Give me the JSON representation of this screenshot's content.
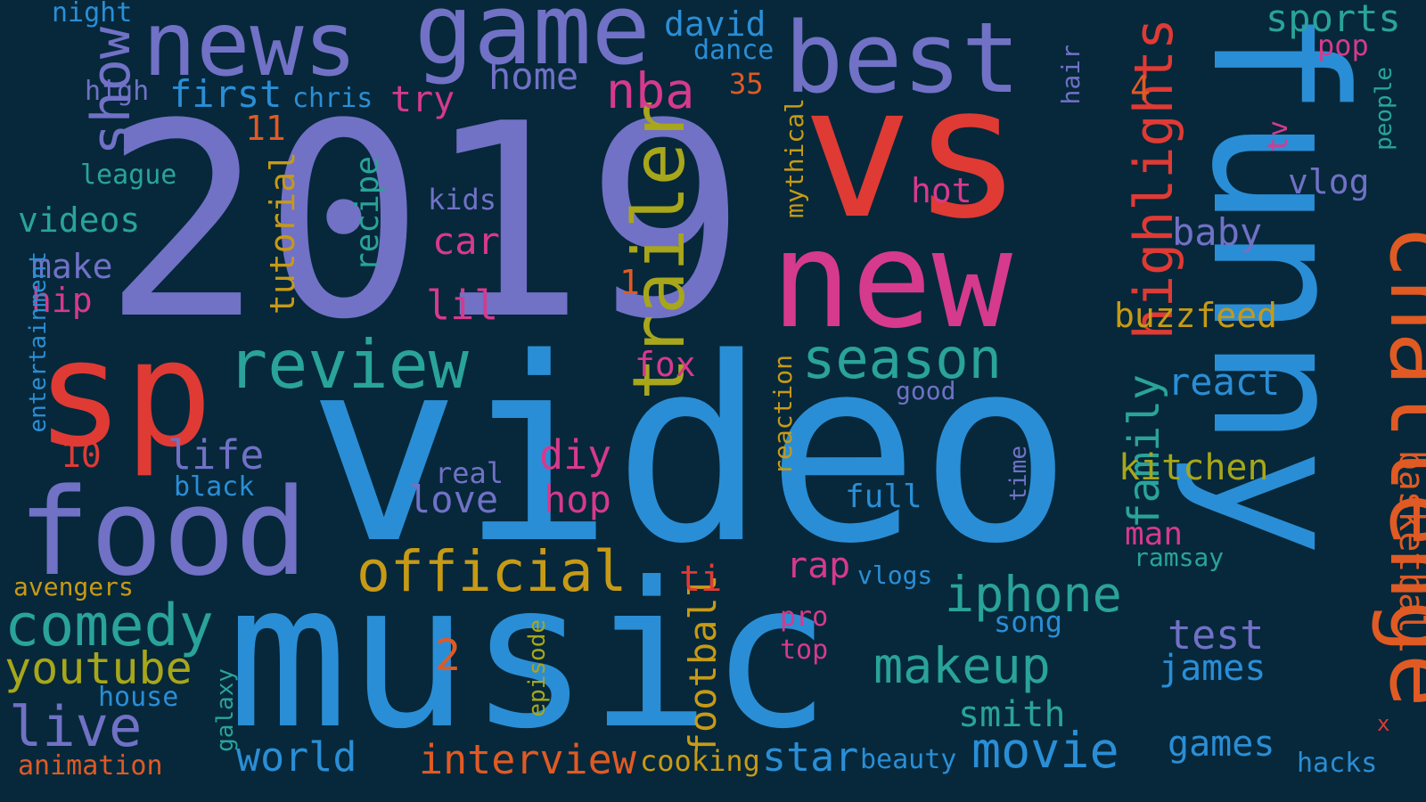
{
  "words": [
    {
      "text": "2019",
      "color": "#7171c6"
    },
    {
      "text": "video",
      "color": "#2a8ed6"
    },
    {
      "text": "vs",
      "color": "#e03a35"
    },
    {
      "text": "music",
      "color": "#2a8ed6"
    },
    {
      "text": "funny",
      "color": "#2a8ed6"
    },
    {
      "text": "new",
      "color": "#d63a8c"
    },
    {
      "text": "sp",
      "color": "#e03a35"
    },
    {
      "text": "food",
      "color": "#7171c6"
    },
    {
      "text": "game",
      "color": "#7171c6"
    },
    {
      "text": "news",
      "color": "#7171c6"
    },
    {
      "text": "best",
      "color": "#7171c6"
    },
    {
      "text": "challenge",
      "color": "#e05a24"
    },
    {
      "text": "trailer",
      "color": "#a8a61a"
    },
    {
      "text": "review",
      "color": "#2aa39a"
    },
    {
      "text": "official",
      "color": "#c79a16"
    },
    {
      "text": "comedy",
      "color": "#2aa39a"
    },
    {
      "text": "season",
      "color": "#2aa39a"
    },
    {
      "text": "highlights",
      "color": "#e03a35"
    },
    {
      "text": "iphone",
      "color": "#2aa39a"
    },
    {
      "text": "makeup",
      "color": "#2aa39a"
    },
    {
      "text": "show",
      "color": "#7171c6"
    },
    {
      "text": "youtube",
      "color": "#a8a61a"
    },
    {
      "text": "live",
      "color": "#7171c6"
    },
    {
      "text": "movie",
      "color": "#2a8ed6"
    },
    {
      "text": "interview",
      "color": "#e05a24"
    },
    {
      "text": "family",
      "color": "#2aa39a"
    },
    {
      "text": "nba",
      "color": "#d63a8c"
    },
    {
      "text": "sports",
      "color": "#2aa39a"
    },
    {
      "text": "world",
      "color": "#2a8ed6"
    },
    {
      "text": "star",
      "color": "#2a8ed6"
    },
    {
      "text": "basketball",
      "color": "#e05a24"
    },
    {
      "text": "football",
      "color": "#c79a16"
    },
    {
      "text": "first",
      "color": "#2a8ed6"
    },
    {
      "text": "home",
      "color": "#7171c6"
    },
    {
      "text": "david",
      "color": "#2a8ed6"
    },
    {
      "text": "videos",
      "color": "#2aa39a"
    },
    {
      "text": "life",
      "color": "#7171c6"
    },
    {
      "text": "kitchen",
      "color": "#a8a61a"
    },
    {
      "text": "buzzfeed",
      "color": "#c79a16"
    },
    {
      "text": "react",
      "color": "#2a8ed6"
    },
    {
      "text": "vlog",
      "color": "#7171c6"
    },
    {
      "text": "baby",
      "color": "#7171c6"
    },
    {
      "text": "test",
      "color": "#7171c6"
    },
    {
      "text": "james",
      "color": "#2a8ed6"
    },
    {
      "text": "games",
      "color": "#2a8ed6"
    },
    {
      "text": "smith",
      "color": "#2aa39a"
    },
    {
      "text": "car",
      "color": "#d63a8c"
    },
    {
      "text": "lil",
      "color": "#d63a8c"
    },
    {
      "text": "diy",
      "color": "#d63a8c"
    },
    {
      "text": "hop",
      "color": "#d63a8c"
    },
    {
      "text": "love",
      "color": "#7171c6"
    },
    {
      "text": "make",
      "color": "#7171c6"
    },
    {
      "text": "hip",
      "color": "#d63a8c"
    },
    {
      "text": "try",
      "color": "#d63a8c"
    },
    {
      "text": "tutorial",
      "color": "#c79a16"
    },
    {
      "text": "recipe",
      "color": "#2aa39a"
    },
    {
      "text": "hot",
      "color": "#d63a8c"
    },
    {
      "text": "fox",
      "color": "#d63a8c"
    },
    {
      "text": "rap",
      "color": "#d63a8c"
    },
    {
      "text": "man",
      "color": "#d63a8c"
    },
    {
      "text": "2",
      "color": "#e05a24"
    },
    {
      "text": "full",
      "color": "#2a8ed6"
    },
    {
      "text": "cooking",
      "color": "#c79a16"
    },
    {
      "text": "beauty",
      "color": "#2a8ed6"
    },
    {
      "text": "song",
      "color": "#2a8ed6"
    },
    {
      "text": "hacks",
      "color": "#2a8ed6"
    },
    {
      "text": "ti",
      "color": "#e03a35"
    },
    {
      "text": "night",
      "color": "#2a8ed6"
    },
    {
      "text": "high",
      "color": "#7171c6"
    },
    {
      "text": "league",
      "color": "#2aa39a"
    },
    {
      "text": "chris",
      "color": "#2a8ed6"
    },
    {
      "text": "dance",
      "color": "#2a8ed6"
    },
    {
      "text": "35",
      "color": "#e05a24"
    },
    {
      "text": "11",
      "color": "#e05a24"
    },
    {
      "text": "kids",
      "color": "#7171c6"
    },
    {
      "text": "mythical",
      "color": "#c79a16"
    },
    {
      "text": "hair",
      "color": "#7171c6"
    },
    {
      "text": "4",
      "color": "#e05a24"
    },
    {
      "text": "pop",
      "color": "#d63a8c"
    },
    {
      "text": "people",
      "color": "#2aa39a"
    },
    {
      "text": "tv",
      "color": "#d63a8c"
    },
    {
      "text": "1",
      "color": "#e05a24"
    },
    {
      "text": "good",
      "color": "#7171c6"
    },
    {
      "text": "reaction",
      "color": "#c79a16"
    },
    {
      "text": "real",
      "color": "#7171c6"
    },
    {
      "text": "time",
      "color": "#7171c6"
    },
    {
      "text": "10",
      "color": "#e03a35"
    },
    {
      "text": "black",
      "color": "#2a8ed6"
    },
    {
      "text": "entertainment",
      "color": "#2a8ed6"
    },
    {
      "text": "avengers",
      "color": "#c79a16"
    },
    {
      "text": "house",
      "color": "#2a8ed6"
    },
    {
      "text": "animation",
      "color": "#e05a24"
    },
    {
      "text": "galaxy",
      "color": "#2aa39a"
    },
    {
      "text": "episode",
      "color": "#a8a61a"
    },
    {
      "text": "ramsay",
      "color": "#2aa39a"
    },
    {
      "text": "vlogs",
      "color": "#2a8ed6"
    },
    {
      "text": "pro",
      "color": "#d63a8c"
    },
    {
      "text": "top",
      "color": "#d63a8c"
    },
    {
      "text": "x",
      "color": "#e03a35"
    }
  ]
}
